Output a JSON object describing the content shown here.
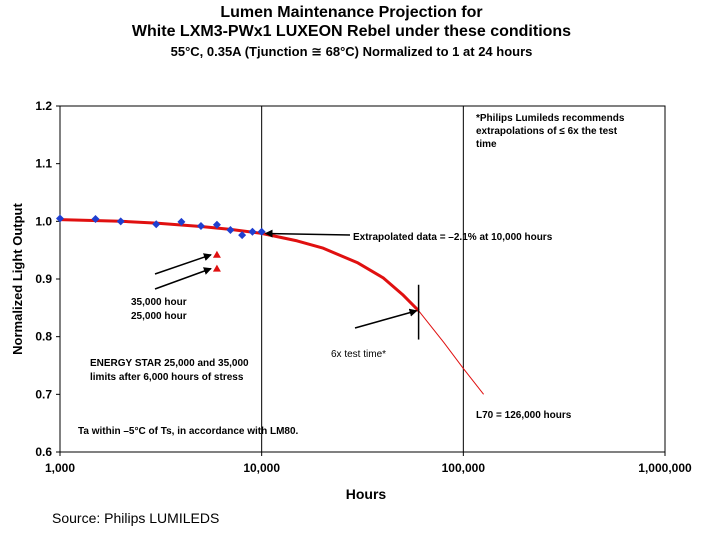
{
  "titles": {
    "line1": "Lumen Maintenance Projection for",
    "line2": "White LXM3-PWx1 LUXEON Rebel under these conditions",
    "line3": "55°C, 0.35A (Tjunction ≅ 68°C) Normalized to 1 at 24 hours"
  },
  "source": "Source: Philips LUMILEDS",
  "chart_data": {
    "type": "scatter",
    "xscale": "log",
    "xlim": [
      1000,
      1000000
    ],
    "ylim": [
      0.6,
      1.2
    ],
    "xlabel": "Hours",
    "ylabel": "Normalized Light Output",
    "x_ticks": [
      1000,
      10000,
      100000,
      1000000
    ],
    "x_tick_labels": [
      "1,000",
      "10,000",
      "100,000",
      "1,000,000"
    ],
    "y_ticks": [
      0.6,
      0.7,
      0.8,
      0.9,
      1.0,
      1.1,
      1.2
    ],
    "y_tick_labels": [
      "0.6",
      "0.7",
      "0.8",
      "0.9",
      "1.0",
      "1.1",
      "1.2"
    ],
    "grid": "vertical at decades",
    "colors": {
      "points": "#1f3fd0",
      "curve": "#e01010",
      "stars": "#e01010"
    },
    "measured": {
      "x": [
        1000,
        1500,
        2000,
        3000,
        4000,
        5000,
        6000,
        7000,
        8000,
        9000,
        10000
      ],
      "y": [
        1.005,
        1.004,
        1.0,
        0.995,
        0.999,
        0.992,
        0.994,
        0.985,
        0.976,
        0.982,
        0.982
      ]
    },
    "curve": {
      "x": [
        1000,
        2000,
        3000,
        5000,
        7000,
        10000,
        15000,
        20000,
        30000,
        40000,
        50000,
        60000,
        80000,
        100000,
        126000
      ],
      "y": [
        1.003,
        1.0,
        0.997,
        0.991,
        0.986,
        0.979,
        0.966,
        0.954,
        0.928,
        0.902,
        0.873,
        0.845,
        0.79,
        0.745,
        0.7
      ],
      "solid_until_x": 60000
    },
    "energy_star_limits": [
      {
        "x": 6000,
        "y": 0.942
      },
      {
        "x": 6000,
        "y": 0.918
      }
    ],
    "annotations": {
      "note": [
        "*Philips Lumileds recommends",
        "extrapolations of ≤ 6x the test",
        "time"
      ],
      "extrapolated": "Extrapolated data = –2.1% at 10,000 hours",
      "hours35": "35,000 hour",
      "hours25": "25,000 hour",
      "sixx": "6x test time*",
      "energy1": "ENERGY STAR  25,000 and 35,000",
      "energy2": "limits after 6,000 hours of stress",
      "l70": "L70 = 126,000 hours",
      "ta": "Ta within –5°C of Ts, in accordance with LM80."
    }
  }
}
